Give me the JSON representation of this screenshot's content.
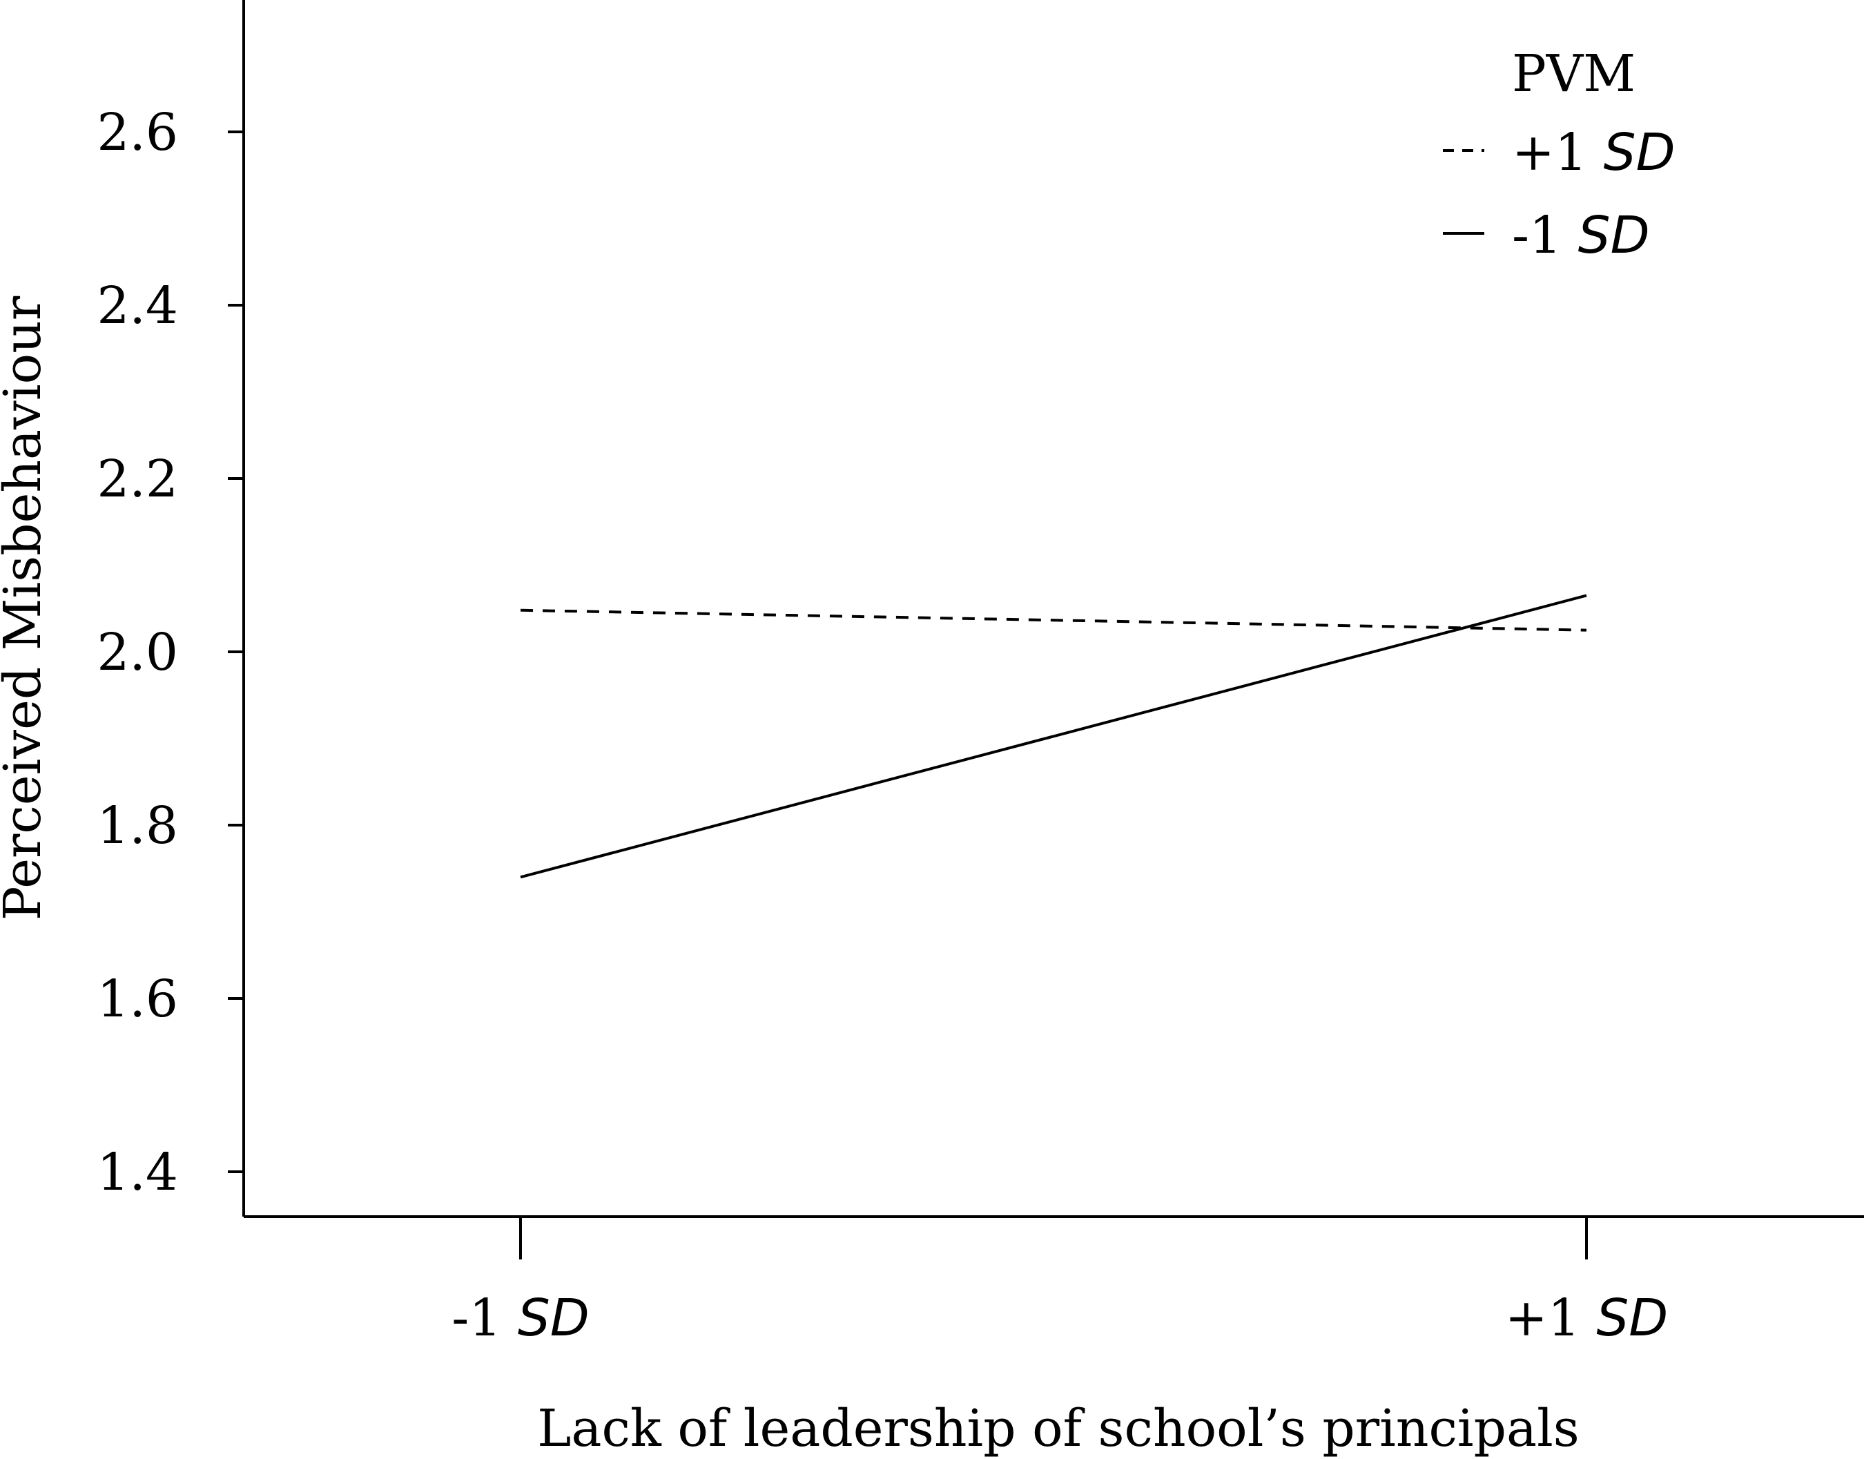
{
  "chart_data": {
    "type": "line",
    "title": "",
    "x": [
      "-1 SD",
      "+1 SD"
    ],
    "x_tick_labels": [
      {
        "prefix": "-1 ",
        "italic": "SD"
      },
      {
        "prefix": "+1 ",
        "italic": "SD"
      }
    ],
    "xlabel": "Lack of leadership of school’s principals",
    "ylabel": "Perceived Misbehaviour",
    "ylim": [
      1.35,
      2.75
    ],
    "yticks": [
      "1.4",
      "1.6",
      "1.8",
      "2.0",
      "2.2",
      "2.4",
      "2.6"
    ],
    "legend": {
      "title": "PVM",
      "placement": "top-right"
    },
    "series": [
      {
        "name": "+1 SD",
        "name_prefix": "+1 ",
        "name_italic": "SD",
        "style": "dashed",
        "values": [
          2.048,
          2.025
        ]
      },
      {
        "name": "-1 SD",
        "name_prefix": "-1 ",
        "name_italic": "SD",
        "style": "solid",
        "values": [
          1.74,
          2.065
        ]
      }
    ],
    "grid": false
  }
}
